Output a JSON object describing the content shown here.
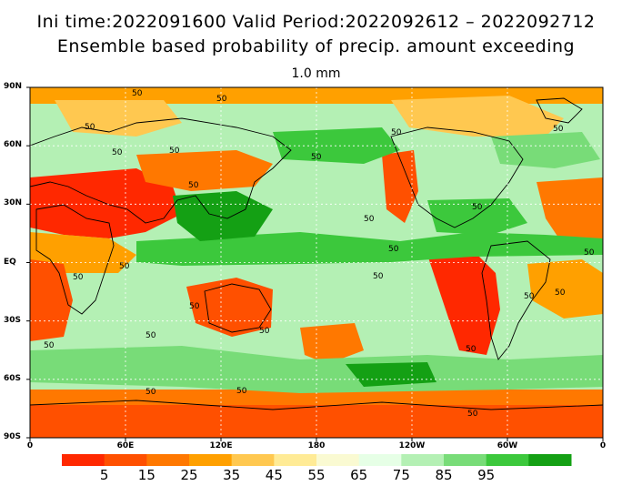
{
  "title": {
    "line1": "Ini time:2022091600   Valid Period:2022092612 – 2022092712",
    "line2": "Ensemble based probability of precip. amount exceeding",
    "threshold": "1.0 mm"
  },
  "map": {
    "projection": "global lat-lon",
    "lon_range": [
      0,
      360
    ],
    "lat_range": [
      -90,
      90
    ],
    "contour_level": "50",
    "y_axis_labels": [
      "90N",
      "60N",
      "30N",
      "EQ",
      "30S",
      "60S",
      "90S"
    ],
    "x_axis_labels": [
      "0",
      "60E",
      "120E",
      "180",
      "120W",
      "60W",
      "0"
    ]
  },
  "colorbar": {
    "colors": [
      "#ff2800",
      "#ff5000",
      "#ff7800",
      "#ffa000",
      "#ffc850",
      "#ffeb96",
      "#fafad2",
      "#e6ffe6",
      "#b4f0b4",
      "#78dc78",
      "#3cc83c",
      "#14a014"
    ],
    "labels": [
      "5",
      "15",
      "25",
      "35",
      "45",
      "55",
      "65",
      "75",
      "85",
      "95"
    ]
  },
  "colors": {
    "coastline": "#000000",
    "grid": "#ffffff"
  }
}
